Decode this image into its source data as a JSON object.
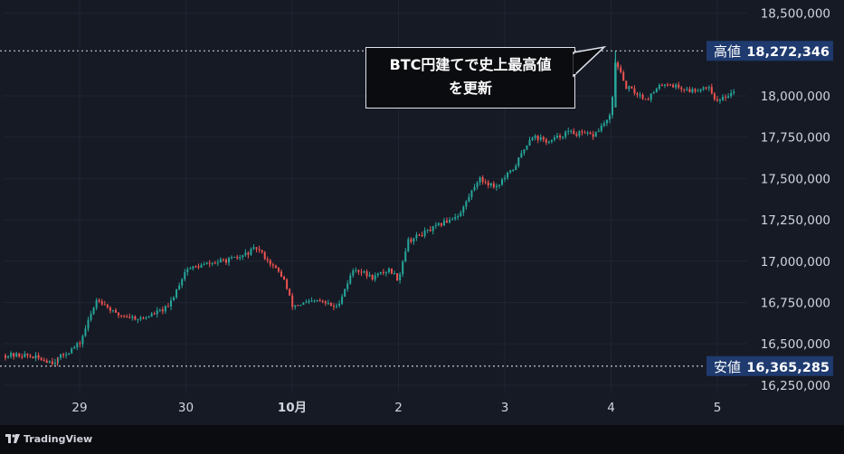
{
  "chart_data": {
    "type": "candlestick",
    "colors": {
      "up": "#26a69a",
      "down": "#ef5350",
      "background": "#161a25",
      "grid": "#1f2433",
      "axis_text": "#d1d4dc",
      "marker_bg": "#1e3a6e"
    },
    "x_tick_labels": [
      "29",
      "30",
      "10月",
      "2",
      "3",
      "4",
      "5"
    ],
    "y_tick_labels": [
      "18,500,000",
      "18,000,000",
      "17,750,000",
      "17,500,000",
      "17,250,000",
      "17,000,000",
      "16,750,000",
      "16,500,000",
      "16,250,000"
    ],
    "ylim": [
      16200000,
      18580000
    ],
    "high": {
      "label": "高値",
      "value": 18272346,
      "value_text": "18,272,346"
    },
    "low": {
      "label": "安値",
      "value": 16365285,
      "value_text": "16,365,285"
    },
    "annotation": {
      "line1": "BTC円建てで史上最高値",
      "line2": "を更新"
    },
    "series": [
      {
        "time": "09-28 12:00",
        "price": 16430000
      },
      {
        "time": "09-28 18:00",
        "price": 16390000
      },
      {
        "time": "09-29 00:00",
        "price": 16500000
      },
      {
        "time": "09-29 04:00",
        "price": 16780000
      },
      {
        "time": "09-29 08:00",
        "price": 16680000
      },
      {
        "time": "09-29 14:00",
        "price": 16650000
      },
      {
        "time": "09-29 20:00",
        "price": 16720000
      },
      {
        "time": "09-30 00:00",
        "price": 16950000
      },
      {
        "time": "09-30 06:00",
        "price": 16990000
      },
      {
        "time": "09-30 12:00",
        "price": 17020000
      },
      {
        "time": "09-30 16:00",
        "price": 17080000
      },
      {
        "time": "09-30 22:00",
        "price": 16900000
      },
      {
        "time": "10-01 00:00",
        "price": 16730000
      },
      {
        "time": "10-01 06:00",
        "price": 16760000
      },
      {
        "time": "10-01 10:00",
        "price": 16720000
      },
      {
        "time": "10-01 14:00",
        "price": 16960000
      },
      {
        "time": "10-01 18:00",
        "price": 16900000
      },
      {
        "time": "10-01 22:00",
        "price": 16950000
      },
      {
        "time": "10-02 00:00",
        "price": 16890000
      },
      {
        "time": "10-02 02:00",
        "price": 17120000
      },
      {
        "time": "10-02 08:00",
        "price": 17200000
      },
      {
        "time": "10-02 14:00",
        "price": 17290000
      },
      {
        "time": "10-02 18:00",
        "price": 17500000
      },
      {
        "time": "10-02 22:00",
        "price": 17450000
      },
      {
        "time": "10-03 02:00",
        "price": 17560000
      },
      {
        "time": "10-03 06:00",
        "price": 17760000
      },
      {
        "time": "10-03 10:00",
        "price": 17720000
      },
      {
        "time": "10-03 14:00",
        "price": 17780000
      },
      {
        "time": "10-03 20:00",
        "price": 17760000
      },
      {
        "time": "10-04 00:00",
        "price": 17880000
      },
      {
        "time": "10-04 01:00",
        "price": 18230000
      },
      {
        "time": "10-04 03:00",
        "price": 18060000
      },
      {
        "time": "10-04 08:00",
        "price": 17980000
      },
      {
        "time": "10-04 12:00",
        "price": 18080000
      },
      {
        "time": "10-04 18:00",
        "price": 18030000
      },
      {
        "time": "10-04 22:00",
        "price": 18060000
      },
      {
        "time": "10-05 00:00",
        "price": 17960000
      },
      {
        "time": "10-05 04:00",
        "price": 18040000
      }
    ]
  },
  "footer": {
    "brand": "TradingView"
  }
}
